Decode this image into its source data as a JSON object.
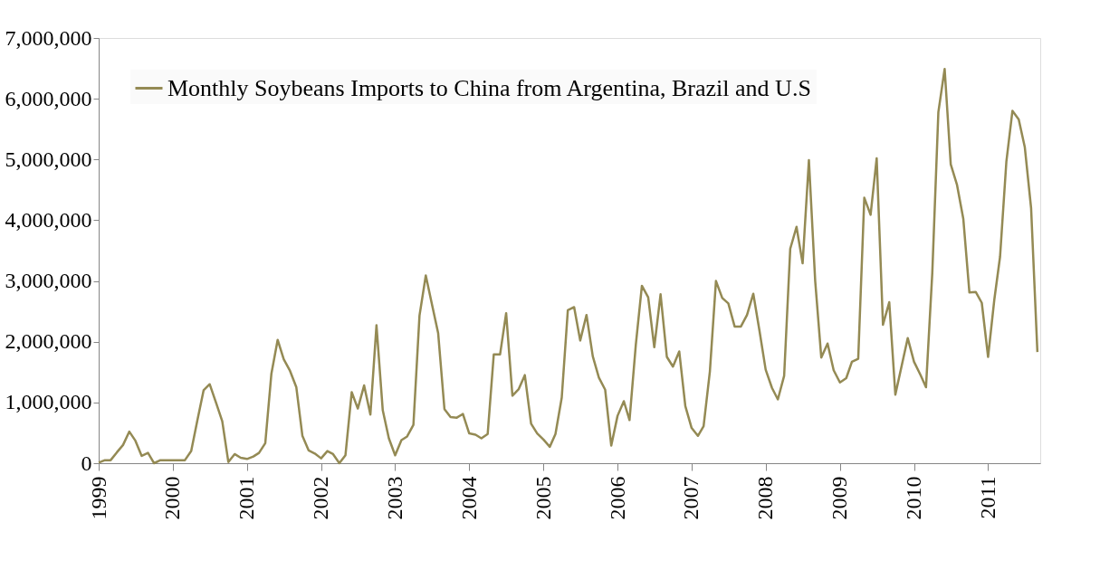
{
  "chart_data": {
    "type": "line",
    "x": [
      "1999-01",
      "1999-02",
      "1999-03",
      "1999-04",
      "1999-05",
      "1999-06",
      "1999-07",
      "1999-08",
      "1999-09",
      "1999-10",
      "1999-11",
      "1999-12",
      "2000-01",
      "2000-02",
      "2000-03",
      "2000-04",
      "2000-05",
      "2000-06",
      "2000-07",
      "2000-08",
      "2000-09",
      "2000-10",
      "2000-11",
      "2000-12",
      "2001-01",
      "2001-02",
      "2001-03",
      "2001-04",
      "2001-05",
      "2001-06",
      "2001-07",
      "2001-08",
      "2001-09",
      "2001-10",
      "2001-11",
      "2001-12",
      "2002-01",
      "2002-02",
      "2002-03",
      "2002-04",
      "2002-05",
      "2002-06",
      "2002-07",
      "2002-08",
      "2002-09",
      "2002-10",
      "2002-11",
      "2002-12",
      "2003-01",
      "2003-02",
      "2003-03",
      "2003-04",
      "2003-05",
      "2003-06",
      "2003-07",
      "2003-08",
      "2003-09",
      "2003-10",
      "2003-11",
      "2003-12",
      "2004-01",
      "2004-02",
      "2004-03",
      "2004-04",
      "2004-05",
      "2004-06",
      "2004-07",
      "2004-08",
      "2004-09",
      "2004-10",
      "2004-11",
      "2004-12",
      "2005-01",
      "2005-02",
      "2005-03",
      "2005-04",
      "2005-05",
      "2005-06",
      "2005-07",
      "2005-08",
      "2005-09",
      "2005-10",
      "2005-11",
      "2005-12",
      "2006-01",
      "2006-02",
      "2006-03",
      "2006-04",
      "2006-05",
      "2006-06",
      "2006-07",
      "2006-08",
      "2006-09",
      "2006-10",
      "2006-11",
      "2006-12",
      "2007-01",
      "2007-02",
      "2007-03",
      "2007-04",
      "2007-05",
      "2007-06",
      "2007-07",
      "2007-08",
      "2007-09",
      "2007-10",
      "2007-11",
      "2007-12",
      "2008-01",
      "2008-02",
      "2008-03",
      "2008-04",
      "2008-05",
      "2008-06",
      "2008-07",
      "2008-08",
      "2008-09",
      "2008-10",
      "2008-11",
      "2008-12",
      "2009-01",
      "2009-02",
      "2009-03",
      "2009-04",
      "2009-05",
      "2009-06",
      "2009-07",
      "2009-08",
      "2009-09",
      "2009-10",
      "2009-11",
      "2009-12",
      "2010-01",
      "2010-02",
      "2010-03",
      "2010-04",
      "2010-05",
      "2010-06",
      "2010-07",
      "2010-08",
      "2010-09",
      "2010-10",
      "2010-11",
      "2010-12",
      "2011-01",
      "2011-02",
      "2011-03",
      "2011-04",
      "2011-05",
      "2011-06",
      "2011-07",
      "2011-08",
      "2011-09"
    ],
    "series": [
      {
        "name": "Monthly Soybeans Imports to China from Argentina, Brazil and U.S",
        "color": "#948a54",
        "values": [
          10000,
          50000,
          50000,
          180000,
          300000,
          520000,
          370000,
          120000,
          170000,
          0,
          50000,
          50000,
          50000,
          50000,
          50000,
          200000,
          700000,
          1200000,
          1300000,
          1000000,
          690000,
          20000,
          150000,
          90000,
          70000,
          110000,
          170000,
          330000,
          1470000,
          2030000,
          1710000,
          1520000,
          1250000,
          450000,
          210000,
          160000,
          80000,
          200000,
          150000,
          0,
          130000,
          1170000,
          900000,
          1280000,
          800000,
          2270000,
          870000,
          410000,
          130000,
          380000,
          440000,
          630000,
          2430000,
          3090000,
          2620000,
          2140000,
          890000,
          760000,
          750000,
          810000,
          490000,
          470000,
          410000,
          480000,
          1790000,
          1790000,
          2470000,
          1110000,
          1220000,
          1450000,
          650000,
          490000,
          390000,
          270000,
          480000,
          1080000,
          2520000,
          2570000,
          2020000,
          2440000,
          1760000,
          1410000,
          1210000,
          290000,
          780000,
          1020000,
          710000,
          1950000,
          2920000,
          2730000,
          1910000,
          2780000,
          1750000,
          1590000,
          1840000,
          940000,
          580000,
          450000,
          610000,
          1510000,
          3000000,
          2720000,
          2630000,
          2250000,
          2250000,
          2440000,
          2790000,
          2190000,
          1540000,
          1240000,
          1050000,
          1440000,
          3530000,
          3890000,
          3290000,
          4990000,
          3000000,
          1740000,
          1970000,
          1530000,
          1330000,
          1400000,
          1670000,
          1720000,
          4370000,
          4090000,
          5020000,
          2280000,
          2650000,
          1130000,
          1600000,
          2060000,
          1670000,
          1460000,
          1250000,
          3130000,
          5780000,
          6490000,
          4920000,
          4580000,
          4020000,
          2810000,
          2820000,
          2640000,
          1750000,
          2700000,
          3400000,
          4960000,
          5800000,
          5660000,
          5200000,
          4200000,
          1830000
        ]
      }
    ],
    "xlim": [
      "1999-01-01",
      "2011-09-15"
    ],
    "xticks": [
      "1999",
      "2000",
      "2001",
      "2002",
      "2003",
      "2004",
      "2005",
      "2006",
      "2007",
      "2008",
      "2009",
      "2010",
      "2011"
    ],
    "ylim": [
      0,
      7000000
    ],
    "yticks": [
      0,
      {
        "value": 1000000,
        "label": "1,000,000"
      },
      {
        "value": 2000000,
        "label": "2,000,000"
      },
      {
        "value": 3000000,
        "label": "3,000,000"
      },
      {
        "value": 4000000,
        "label": "4,000,000"
      },
      {
        "value": 5000000,
        "label": "5,000,000"
      },
      {
        "value": 6000000,
        "label": "6,000,000"
      },
      {
        "value": 7000000,
        "label": "7,000,000"
      }
    ],
    "grid": false,
    "legend": "top left",
    "marker": "none",
    "line_style": "solid"
  }
}
